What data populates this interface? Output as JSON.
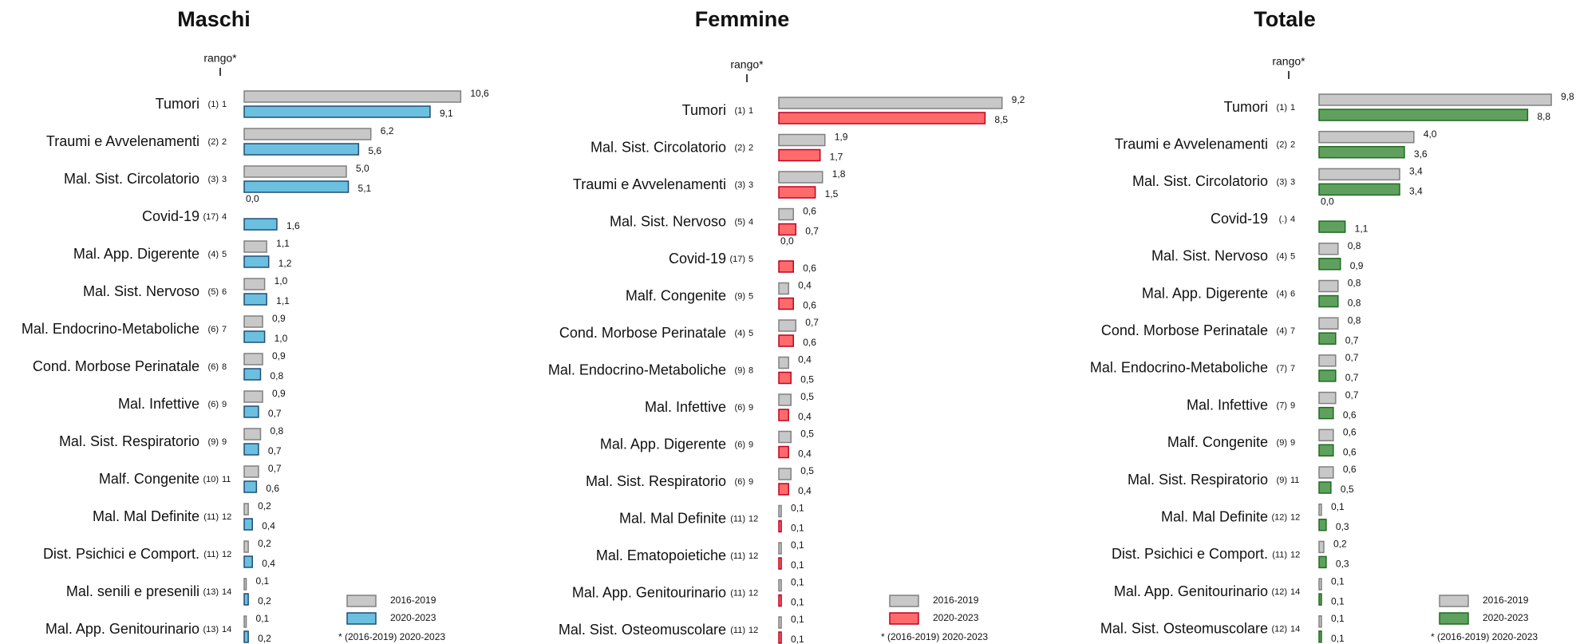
{
  "chart_data": [
    {
      "type": "bar",
      "orientation": "horizontal",
      "title": "Maschi",
      "rank_label": "rango*",
      "footnote": "* (2016-2019) 2020-2023",
      "categories": [
        "Tumori",
        "Traumi e Avvelenamenti",
        "Mal. Sist. Circolatorio",
        "Covid-19",
        "Mal. App. Digerente",
        "Mal. Sist. Nervoso",
        "Mal. Endocrino-Metaboliche",
        "Cond. Morbose Perinatale",
        "Mal. Infettive",
        "Mal. Sist. Respiratorio",
        "Malf. Congenite",
        "Mal. Mal Definite",
        "Dist. Psichici e Comport.",
        "Mal. senili e presenili",
        "Mal. App. Genitourinario"
      ],
      "rank_prev": [
        "(1)",
        "(2)",
        "(3)",
        "(17)",
        "(4)",
        "(5)",
        "(6)",
        "(6)",
        "(6)",
        "(9)",
        "(10)",
        "(11)",
        "(11)",
        "(13)",
        "(13)"
      ],
      "rank_now": [
        "1",
        "2",
        "3",
        "4",
        "5",
        "6",
        "7",
        "8",
        "9",
        "9",
        "11",
        "12",
        "12",
        "14",
        "14"
      ],
      "series": [
        {
          "name": "2016-2019",
          "color": "#c8c8c8",
          "stroke": "#808080",
          "values": [
            10.6,
            6.2,
            5.0,
            0.0,
            1.1,
            1.0,
            0.9,
            0.9,
            0.9,
            0.8,
            0.7,
            0.2,
            0.2,
            0.1,
            0.1
          ],
          "value_labels": [
            "10,6",
            "6,2",
            "5,0",
            "0,0",
            "1,1",
            "1,0",
            "0,9",
            "0,9",
            "0,9",
            "0,8",
            "0,7",
            "0,2",
            "0,2",
            "0,1",
            "0,1"
          ]
        },
        {
          "name": "2020-2023",
          "color": "#6bbfdf",
          "stroke": "#1f4e79",
          "values": [
            9.1,
            5.6,
            5.1,
            1.6,
            1.2,
            1.1,
            1.0,
            0.8,
            0.7,
            0.7,
            0.6,
            0.4,
            0.4,
            0.2,
            0.2
          ],
          "value_labels": [
            "9,1",
            "5,6",
            "5,1",
            "1,6",
            "1,2",
            "1,1",
            "1,0",
            "0,8",
            "0,7",
            "0,7",
            "0,6",
            "0,4",
            "0,4",
            "0,2",
            "0,2"
          ]
        }
      ]
    },
    {
      "type": "bar",
      "orientation": "horizontal",
      "title": "Femmine",
      "rank_label": "rango*",
      "footnote": "* (2016-2019) 2020-2023",
      "categories": [
        "Tumori",
        "Mal. Sist. Circolatorio",
        "Traumi e Avvelenamenti",
        "Mal. Sist. Nervoso",
        "Covid-19",
        "Malf. Congenite",
        "Cond. Morbose Perinatale",
        "Mal. Endocrino-Metaboliche",
        "Mal. Infettive",
        "Mal. App. Digerente",
        "Mal. Sist. Respiratorio",
        "Mal. Mal Definite",
        "Mal. Ematopoietiche",
        "Mal. App. Genitourinario",
        "Mal. Sist. Osteomuscolare"
      ],
      "rank_prev": [
        "(1)",
        "(2)",
        "(3)",
        "(5)",
        "(17)",
        "(9)",
        "(4)",
        "(9)",
        "(6)",
        "(6)",
        "(6)",
        "(11)",
        "(11)",
        "(11)",
        "(11)"
      ],
      "rank_now": [
        "1",
        "2",
        "3",
        "4",
        "5",
        "5",
        "5",
        "8",
        "9",
        "9",
        "9",
        "12",
        "12",
        "12",
        "12"
      ],
      "series": [
        {
          "name": "2016-2019",
          "color": "#c8c8c8",
          "stroke": "#808080",
          "values": [
            9.2,
            1.9,
            1.8,
            0.6,
            0.0,
            0.4,
            0.7,
            0.4,
            0.5,
            0.5,
            0.5,
            0.1,
            0.1,
            0.1,
            0.1
          ],
          "value_labels": [
            "9,2",
            "1,9",
            "1,8",
            "0,6",
            "0,0",
            "0,4",
            "0,7",
            "0,4",
            "0,5",
            "0,5",
            "0,5",
            "0,1",
            "0,1",
            "0,1",
            "0,1"
          ]
        },
        {
          "name": "2020-2023",
          "color": "#ff6b6b",
          "stroke": "#c00020",
          "values": [
            8.5,
            1.7,
            1.5,
            0.7,
            0.6,
            0.6,
            0.6,
            0.5,
            0.4,
            0.4,
            0.4,
            0.1,
            0.1,
            0.1,
            0.1
          ],
          "value_labels": [
            "8,5",
            "1,7",
            "1,5",
            "0,7",
            "0,6",
            "0,6",
            "0,6",
            "0,5",
            "0,4",
            "0,4",
            "0,4",
            "0,1",
            "0,1",
            "0,1",
            "0,1"
          ]
        }
      ]
    },
    {
      "type": "bar",
      "orientation": "horizontal",
      "title": "Totale",
      "rank_label": "rango*",
      "footnote": "* (2016-2019) 2020-2023",
      "categories": [
        "Tumori",
        "Traumi e Avvelenamenti",
        "Mal. Sist. Circolatorio",
        "Covid-19",
        "Mal. Sist. Nervoso",
        "Mal. App. Digerente",
        "Cond. Morbose Perinatale",
        "Mal. Endocrino-Metaboliche",
        "Mal. Infettive",
        "Malf. Congenite",
        "Mal. Sist. Respiratorio",
        "Mal. Mal Definite",
        "Dist. Psichici e Comport.",
        "Mal. App. Genitourinario",
        "Mal. Sist. Osteomuscolare"
      ],
      "rank_prev": [
        "(1)",
        "(2)",
        "(3)",
        "(.)",
        "(4)",
        "(4)",
        "(4)",
        "(7)",
        "(7)",
        "(9)",
        "(9)",
        "(12)",
        "(11)",
        "(12)",
        "(12)"
      ],
      "rank_now": [
        "1",
        "2",
        "3",
        "4",
        "5",
        "6",
        "7",
        "7",
        "9",
        "9",
        "11",
        "12",
        "12",
        "14",
        "14"
      ],
      "series": [
        {
          "name": "2016-2019",
          "color": "#c8c8c8",
          "stroke": "#808080",
          "values": [
            9.8,
            4.0,
            3.4,
            0.0,
            0.8,
            0.8,
            0.8,
            0.7,
            0.7,
            0.6,
            0.6,
            0.1,
            0.2,
            0.1,
            0.1
          ],
          "value_labels": [
            "9,8",
            "4,0",
            "3,4",
            "0,0",
            "0,8",
            "0,8",
            "0,8",
            "0,7",
            "0,7",
            "0,6",
            "0,6",
            "0,1",
            "0,2",
            "0,1",
            "0,1"
          ]
        },
        {
          "name": "2020-2023",
          "color": "#5fa05f",
          "stroke": "#1e6b1e",
          "values": [
            8.8,
            3.6,
            3.4,
            1.1,
            0.9,
            0.8,
            0.7,
            0.7,
            0.6,
            0.6,
            0.5,
            0.3,
            0.3,
            0.1,
            0.1
          ],
          "value_labels": [
            "8,8",
            "3,6",
            "3,4",
            "1,1",
            "0,9",
            "0,8",
            "0,7",
            "0,7",
            "0,6",
            "0,6",
            "0,5",
            "0,3",
            "0,3",
            "0,1",
            "0,1"
          ]
        }
      ]
    }
  ]
}
